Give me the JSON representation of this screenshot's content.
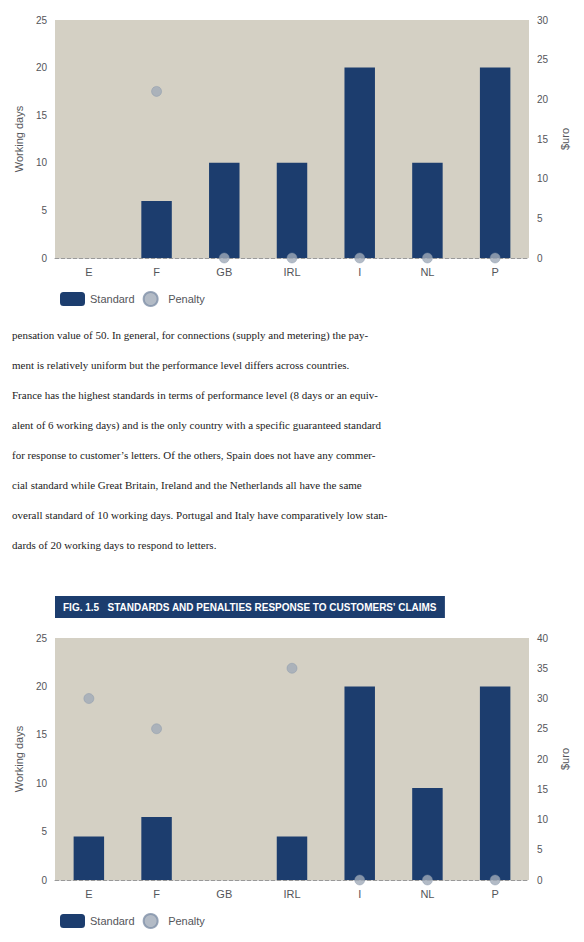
{
  "chart_data": [
    {
      "type": "bar",
      "categories": [
        "E",
        "F",
        "GB",
        "IRL",
        "I",
        "NL",
        "P"
      ],
      "series": [
        {
          "name": "Standard",
          "type": "bar",
          "color": "#1c3d6e",
          "values": [
            0,
            6,
            10,
            10,
            20,
            10,
            20
          ]
        },
        {
          "name": "Penalty",
          "type": "scatter",
          "axis": "y2",
          "color": "#a0aab8",
          "marker": "circle",
          "values": [
            null,
            21,
            0,
            0,
            0,
            0,
            0
          ]
        }
      ],
      "ylabel": "Working days",
      "y2label": "$uro",
      "ylim": [
        0,
        25
      ],
      "yticks": [
        0,
        5,
        10,
        15,
        20,
        25
      ],
      "y2lim": [
        0,
        30
      ],
      "y2ticks": [
        0,
        5,
        10,
        15,
        20,
        25,
        30
      ],
      "grid": false,
      "legend": "bottom",
      "annotations": [
        "pensation value of   50. In general, for connections (supply and metering) the pay-",
        "ment is relatively uniform but the performance level differs across countries.",
        "France has the highest standards in terms of performance level (8 days or an equiv-",
        "alent of 6 working days) and is the only country with a specific guaranteed standard",
        "for response to customer’s letters. Of the others, Spain does not have any commer-",
        "cial standard while Great Britain, Ireland and the Netherlands all have the same",
        "overall standard of 10 working days. Portugal and Italy have comparatively low stan-",
        "dards of 20 working days to respond to letters."
      ]
    },
    {
      "type": "bar",
      "title": "FIG. 1.5   STANDARDS AND PENALTIES RESPONSE TO CUSTOMERS' CLAIMS",
      "categories": [
        "E",
        "F",
        "GB",
        "IRL",
        "I",
        "NL",
        "P"
      ],
      "series": [
        {
          "name": "Standard",
          "type": "bar",
          "color": "#1c3d6e",
          "values": [
            4.5,
            6.5,
            0,
            4.5,
            20,
            9.5,
            20
          ]
        },
        {
          "name": "Penalty",
          "type": "scatter",
          "axis": "y2",
          "color": "#a0aab8",
          "marker": "circle",
          "values": [
            30,
            25,
            null,
            35,
            0,
            0,
            0
          ]
        }
      ],
      "ylabel": "Working days",
      "y2label": "$uro",
      "ylim": [
        0,
        25
      ],
      "yticks": [
        0,
        5,
        10,
        15,
        20,
        25
      ],
      "y2lim": [
        0,
        40
      ],
      "y2ticks": [
        0,
        5,
        10,
        15,
        20,
        25,
        30,
        35,
        40
      ],
      "grid": false,
      "legend": "bottom"
    }
  ]
}
